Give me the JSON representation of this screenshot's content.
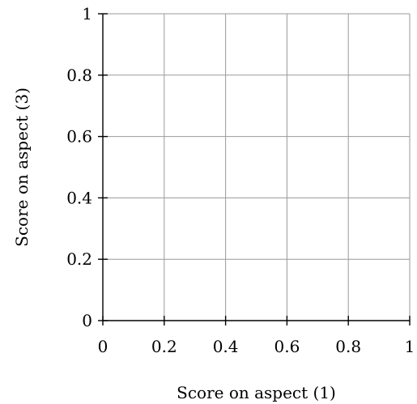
{
  "chart_data": {
    "type": "scatter",
    "title": "",
    "xlabel": "Score on aspect (1)",
    "ylabel": "Score on aspect (3)",
    "xlim": [
      0,
      1
    ],
    "ylim": [
      0,
      1
    ],
    "x_ticks": [
      "0",
      "0.2",
      "0.4",
      "0.6",
      "0.8",
      "1"
    ],
    "y_ticks": [
      "0",
      "0.2",
      "0.4",
      "0.6",
      "0.8",
      "1"
    ],
    "grid": true,
    "series": [],
    "colors": {
      "grid": "#9a9a9a",
      "axis": "#000000"
    }
  }
}
